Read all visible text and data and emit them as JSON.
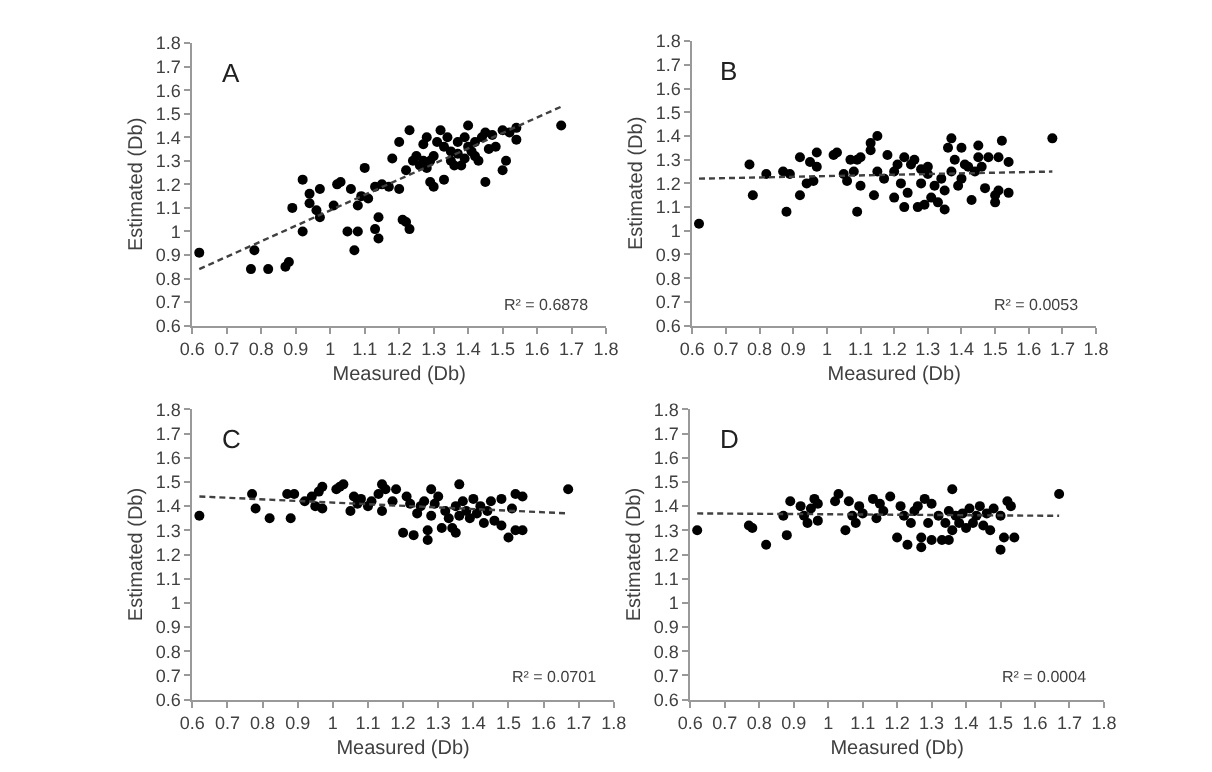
{
  "chart_data": [
    {
      "type": "scatter",
      "xlabel": "Measured (Db)",
      "ylabel": "Estimated (Db)",
      "annotations": [
        "A",
        "R² = 0.6878"
      ],
      "xlim": [
        0.6,
        1.8
      ],
      "ylim": [
        0.6,
        1.8
      ],
      "xticks": [
        0.6,
        0.7,
        0.8,
        0.9,
        1,
        1.1,
        1.2,
        1.3,
        1.4,
        1.5,
        1.6,
        1.7,
        1.8
      ],
      "yticks": [
        0.6,
        0.7,
        0.8,
        0.9,
        1,
        1.1,
        1.2,
        1.3,
        1.4,
        1.5,
        1.6,
        1.7,
        1.8
      ],
      "series": [
        {
          "type": "scatter",
          "color": "#000000",
          "marker": "circle",
          "x": [
            0.62,
            0.77,
            0.78,
            0.82,
            0.87,
            0.88,
            0.89,
            0.92,
            0.92,
            0.94,
            0.94,
            0.96,
            0.97,
            0.97,
            1.01,
            1.02,
            1.03,
            1.05,
            1.06,
            1.07,
            1.08,
            1.08,
            1.09,
            1.1,
            1.11,
            1.13,
            1.13,
            1.14,
            1.14,
            1.15,
            1.17,
            1.18,
            1.2,
            1.2,
            1.21,
            1.22,
            1.22,
            1.23,
            1.23,
            1.24,
            1.25,
            1.26,
            1.27,
            1.27,
            1.28,
            1.28,
            1.29,
            1.29,
            1.3,
            1.3,
            1.31,
            1.32,
            1.33,
            1.33,
            1.34,
            1.35,
            1.35,
            1.36,
            1.37,
            1.37,
            1.38,
            1.39,
            1.39,
            1.4,
            1.4,
            1.41,
            1.42,
            1.42,
            1.43,
            1.44,
            1.45,
            1.45,
            1.46,
            1.47,
            1.48,
            1.5,
            1.5,
            1.51,
            1.52,
            1.54,
            1.54,
            1.67
          ],
          "values": [
            0.91,
            0.84,
            0.92,
            0.84,
            0.85,
            0.87,
            1.1,
            1.22,
            1.0,
            1.16,
            1.12,
            1.09,
            1.18,
            1.06,
            1.11,
            1.2,
            1.21,
            1.0,
            1.18,
            0.92,
            1.0,
            1.11,
            1.15,
            1.27,
            1.14,
            1.01,
            1.19,
            0.97,
            1.06,
            1.2,
            1.19,
            1.31,
            1.38,
            1.18,
            1.05,
            1.04,
            1.26,
            1.01,
            1.43,
            1.3,
            1.32,
            1.28,
            1.37,
            1.3,
            1.4,
            1.27,
            1.21,
            1.3,
            1.19,
            1.32,
            1.38,
            1.43,
            1.22,
            1.36,
            1.4,
            1.3,
            1.34,
            1.28,
            1.38,
            1.33,
            1.28,
            1.4,
            1.31,
            1.45,
            1.36,
            1.34,
            1.38,
            1.32,
            1.3,
            1.4,
            1.21,
            1.42,
            1.35,
            1.41,
            1.36,
            1.26,
            1.43,
            1.3,
            1.42,
            1.39,
            1.44,
            1.45
          ]
        },
        {
          "type": "line",
          "color": "#404040",
          "marker": "none",
          "line_style": "dashed",
          "x": [
            0.62,
            1.67
          ],
          "values": [
            0.84,
            1.53
          ]
        }
      ]
    },
    {
      "type": "scatter",
      "xlabel": "Measured (Db)",
      "ylabel": "Estimated (Db)",
      "annotations": [
        "B",
        "R² = 0.0053"
      ],
      "xlim": [
        0.6,
        1.8
      ],
      "ylim": [
        0.6,
        1.8
      ],
      "xticks": [
        0.6,
        0.7,
        0.8,
        0.9,
        1,
        1.1,
        1.2,
        1.3,
        1.4,
        1.5,
        1.6,
        1.7,
        1.8
      ],
      "yticks": [
        0.6,
        0.7,
        0.8,
        0.9,
        1,
        1.1,
        1.2,
        1.3,
        1.4,
        1.5,
        1.6,
        1.7,
        1.8
      ],
      "series": [
        {
          "type": "scatter",
          "color": "#000000",
          "marker": "circle",
          "x": [
            0.62,
            0.77,
            0.78,
            0.82,
            0.87,
            0.88,
            0.89,
            0.92,
            0.92,
            0.94,
            0.95,
            0.96,
            0.97,
            0.97,
            1.02,
            1.03,
            1.05,
            1.06,
            1.07,
            1.08,
            1.09,
            1.09,
            1.1,
            1.1,
            1.13,
            1.13,
            1.14,
            1.15,
            1.15,
            1.17,
            1.18,
            1.2,
            1.2,
            1.21,
            1.22,
            1.23,
            1.23,
            1.24,
            1.25,
            1.26,
            1.27,
            1.28,
            1.28,
            1.29,
            1.3,
            1.3,
            1.31,
            1.32,
            1.33,
            1.34,
            1.35,
            1.35,
            1.36,
            1.37,
            1.37,
            1.38,
            1.39,
            1.4,
            1.4,
            1.41,
            1.42,
            1.43,
            1.44,
            1.45,
            1.45,
            1.46,
            1.47,
            1.48,
            1.5,
            1.5,
            1.51,
            1.51,
            1.52,
            1.54,
            1.54,
            1.67
          ],
          "values": [
            1.03,
            1.28,
            1.15,
            1.24,
            1.25,
            1.08,
            1.24,
            1.31,
            1.15,
            1.2,
            1.29,
            1.21,
            1.33,
            1.27,
            1.32,
            1.33,
            1.24,
            1.21,
            1.3,
            1.25,
            1.08,
            1.3,
            1.19,
            1.31,
            1.34,
            1.37,
            1.15,
            1.4,
            1.25,
            1.22,
            1.32,
            1.14,
            1.25,
            1.28,
            1.2,
            1.1,
            1.31,
            1.16,
            1.28,
            1.3,
            1.1,
            1.2,
            1.26,
            1.11,
            1.27,
            1.24,
            1.14,
            1.19,
            1.12,
            1.22,
            1.09,
            1.17,
            1.35,
            1.39,
            1.25,
            1.3,
            1.19,
            1.35,
            1.22,
            1.28,
            1.27,
            1.13,
            1.25,
            1.36,
            1.31,
            1.27,
            1.18,
            1.31,
            1.15,
            1.12,
            1.31,
            1.17,
            1.38,
            1.29,
            1.16,
            1.39
          ]
        },
        {
          "type": "line",
          "color": "#404040",
          "marker": "none",
          "line_style": "dashed",
          "x": [
            0.62,
            1.67
          ],
          "values": [
            1.22,
            1.25
          ]
        }
      ]
    },
    {
      "type": "scatter",
      "xlabel": "Measured (Db)",
      "ylabel": "Estimated (Db)",
      "annotations": [
        "C",
        "R² = 0.0701"
      ],
      "xlim": [
        0.6,
        1.8
      ],
      "ylim": [
        0.6,
        1.8
      ],
      "xticks": [
        0.6,
        0.7,
        0.8,
        0.9,
        1,
        1.1,
        1.2,
        1.3,
        1.4,
        1.5,
        1.6,
        1.7,
        1.8
      ],
      "yticks": [
        0.6,
        0.7,
        0.8,
        0.9,
        1,
        1.1,
        1.2,
        1.3,
        1.4,
        1.5,
        1.6,
        1.7,
        1.8
      ],
      "series": [
        {
          "type": "scatter",
          "color": "#000000",
          "marker": "circle",
          "x": [
            0.62,
            0.77,
            0.78,
            0.82,
            0.87,
            0.88,
            0.89,
            0.92,
            0.94,
            0.95,
            0.96,
            0.97,
            0.97,
            1.01,
            1.02,
            1.03,
            1.05,
            1.06,
            1.07,
            1.08,
            1.1,
            1.11,
            1.13,
            1.14,
            1.14,
            1.15,
            1.17,
            1.18,
            1.2,
            1.21,
            1.22,
            1.23,
            1.24,
            1.25,
            1.26,
            1.27,
            1.27,
            1.28,
            1.28,
            1.29,
            1.3,
            1.31,
            1.32,
            1.33,
            1.34,
            1.35,
            1.35,
            1.36,
            1.36,
            1.37,
            1.38,
            1.39,
            1.4,
            1.41,
            1.42,
            1.43,
            1.44,
            1.45,
            1.46,
            1.48,
            1.48,
            1.5,
            1.51,
            1.52,
            1.52,
            1.54,
            1.54,
            1.67
          ],
          "values": [
            1.36,
            1.45,
            1.39,
            1.35,
            1.45,
            1.35,
            1.45,
            1.42,
            1.44,
            1.4,
            1.46,
            1.48,
            1.39,
            1.47,
            1.48,
            1.49,
            1.38,
            1.44,
            1.41,
            1.43,
            1.4,
            1.42,
            1.45,
            1.49,
            1.38,
            1.47,
            1.42,
            1.47,
            1.29,
            1.44,
            1.41,
            1.28,
            1.37,
            1.4,
            1.42,
            1.26,
            1.3,
            1.47,
            1.36,
            1.41,
            1.44,
            1.31,
            1.38,
            1.35,
            1.31,
            1.29,
            1.4,
            1.49,
            1.36,
            1.42,
            1.38,
            1.35,
            1.43,
            1.37,
            1.4,
            1.33,
            1.38,
            1.42,
            1.34,
            1.32,
            1.43,
            1.27,
            1.39,
            1.3,
            1.45,
            1.44,
            1.3,
            1.47
          ]
        },
        {
          "type": "line",
          "color": "#404040",
          "marker": "none",
          "line_style": "dashed",
          "x": [
            0.62,
            1.67
          ],
          "values": [
            1.44,
            1.37
          ]
        }
      ]
    },
    {
      "type": "scatter",
      "xlabel": "Measured (Db)",
      "ylabel": "Estimated (Db)",
      "annotations": [
        "D",
        "R² = 0.0004"
      ],
      "xlim": [
        0.6,
        1.8
      ],
      "ylim": [
        0.6,
        1.8
      ],
      "xticks": [
        0.6,
        0.7,
        0.8,
        0.9,
        1,
        1.1,
        1.2,
        1.3,
        1.4,
        1.5,
        1.6,
        1.7,
        1.8
      ],
      "yticks": [
        0.6,
        0.7,
        0.8,
        0.9,
        1,
        1.1,
        1.2,
        1.3,
        1.4,
        1.5,
        1.6,
        1.7,
        1.8
      ],
      "series": [
        {
          "type": "scatter",
          "color": "#000000",
          "marker": "circle",
          "x": [
            0.62,
            0.77,
            0.78,
            0.82,
            0.87,
            0.88,
            0.89,
            0.92,
            0.93,
            0.94,
            0.95,
            0.96,
            0.97,
            0.97,
            1.02,
            1.03,
            1.05,
            1.06,
            1.07,
            1.08,
            1.09,
            1.1,
            1.13,
            1.14,
            1.15,
            1.16,
            1.18,
            1.2,
            1.21,
            1.22,
            1.23,
            1.24,
            1.25,
            1.26,
            1.27,
            1.27,
            1.28,
            1.29,
            1.3,
            1.3,
            1.32,
            1.33,
            1.34,
            1.35,
            1.35,
            1.36,
            1.36,
            1.37,
            1.38,
            1.39,
            1.4,
            1.41,
            1.42,
            1.43,
            1.44,
            1.45,
            1.46,
            1.47,
            1.48,
            1.5,
            1.5,
            1.51,
            1.52,
            1.53,
            1.54,
            1.67
          ],
          "values": [
            1.3,
            1.32,
            1.31,
            1.24,
            1.36,
            1.28,
            1.42,
            1.4,
            1.36,
            1.33,
            1.39,
            1.43,
            1.34,
            1.41,
            1.42,
            1.45,
            1.3,
            1.42,
            1.36,
            1.33,
            1.4,
            1.37,
            1.43,
            1.35,
            1.41,
            1.38,
            1.44,
            1.27,
            1.4,
            1.36,
            1.24,
            1.33,
            1.38,
            1.4,
            1.23,
            1.27,
            1.43,
            1.33,
            1.41,
            1.26,
            1.36,
            1.26,
            1.33,
            1.26,
            1.38,
            1.47,
            1.3,
            1.36,
            1.33,
            1.37,
            1.31,
            1.39,
            1.33,
            1.36,
            1.4,
            1.32,
            1.37,
            1.3,
            1.39,
            1.22,
            1.36,
            1.27,
            1.42,
            1.4,
            1.27,
            1.45
          ]
        },
        {
          "type": "line",
          "color": "#404040",
          "marker": "none",
          "line_style": "dashed",
          "x": [
            0.62,
            1.67
          ],
          "values": [
            1.37,
            1.36
          ]
        }
      ]
    }
  ]
}
